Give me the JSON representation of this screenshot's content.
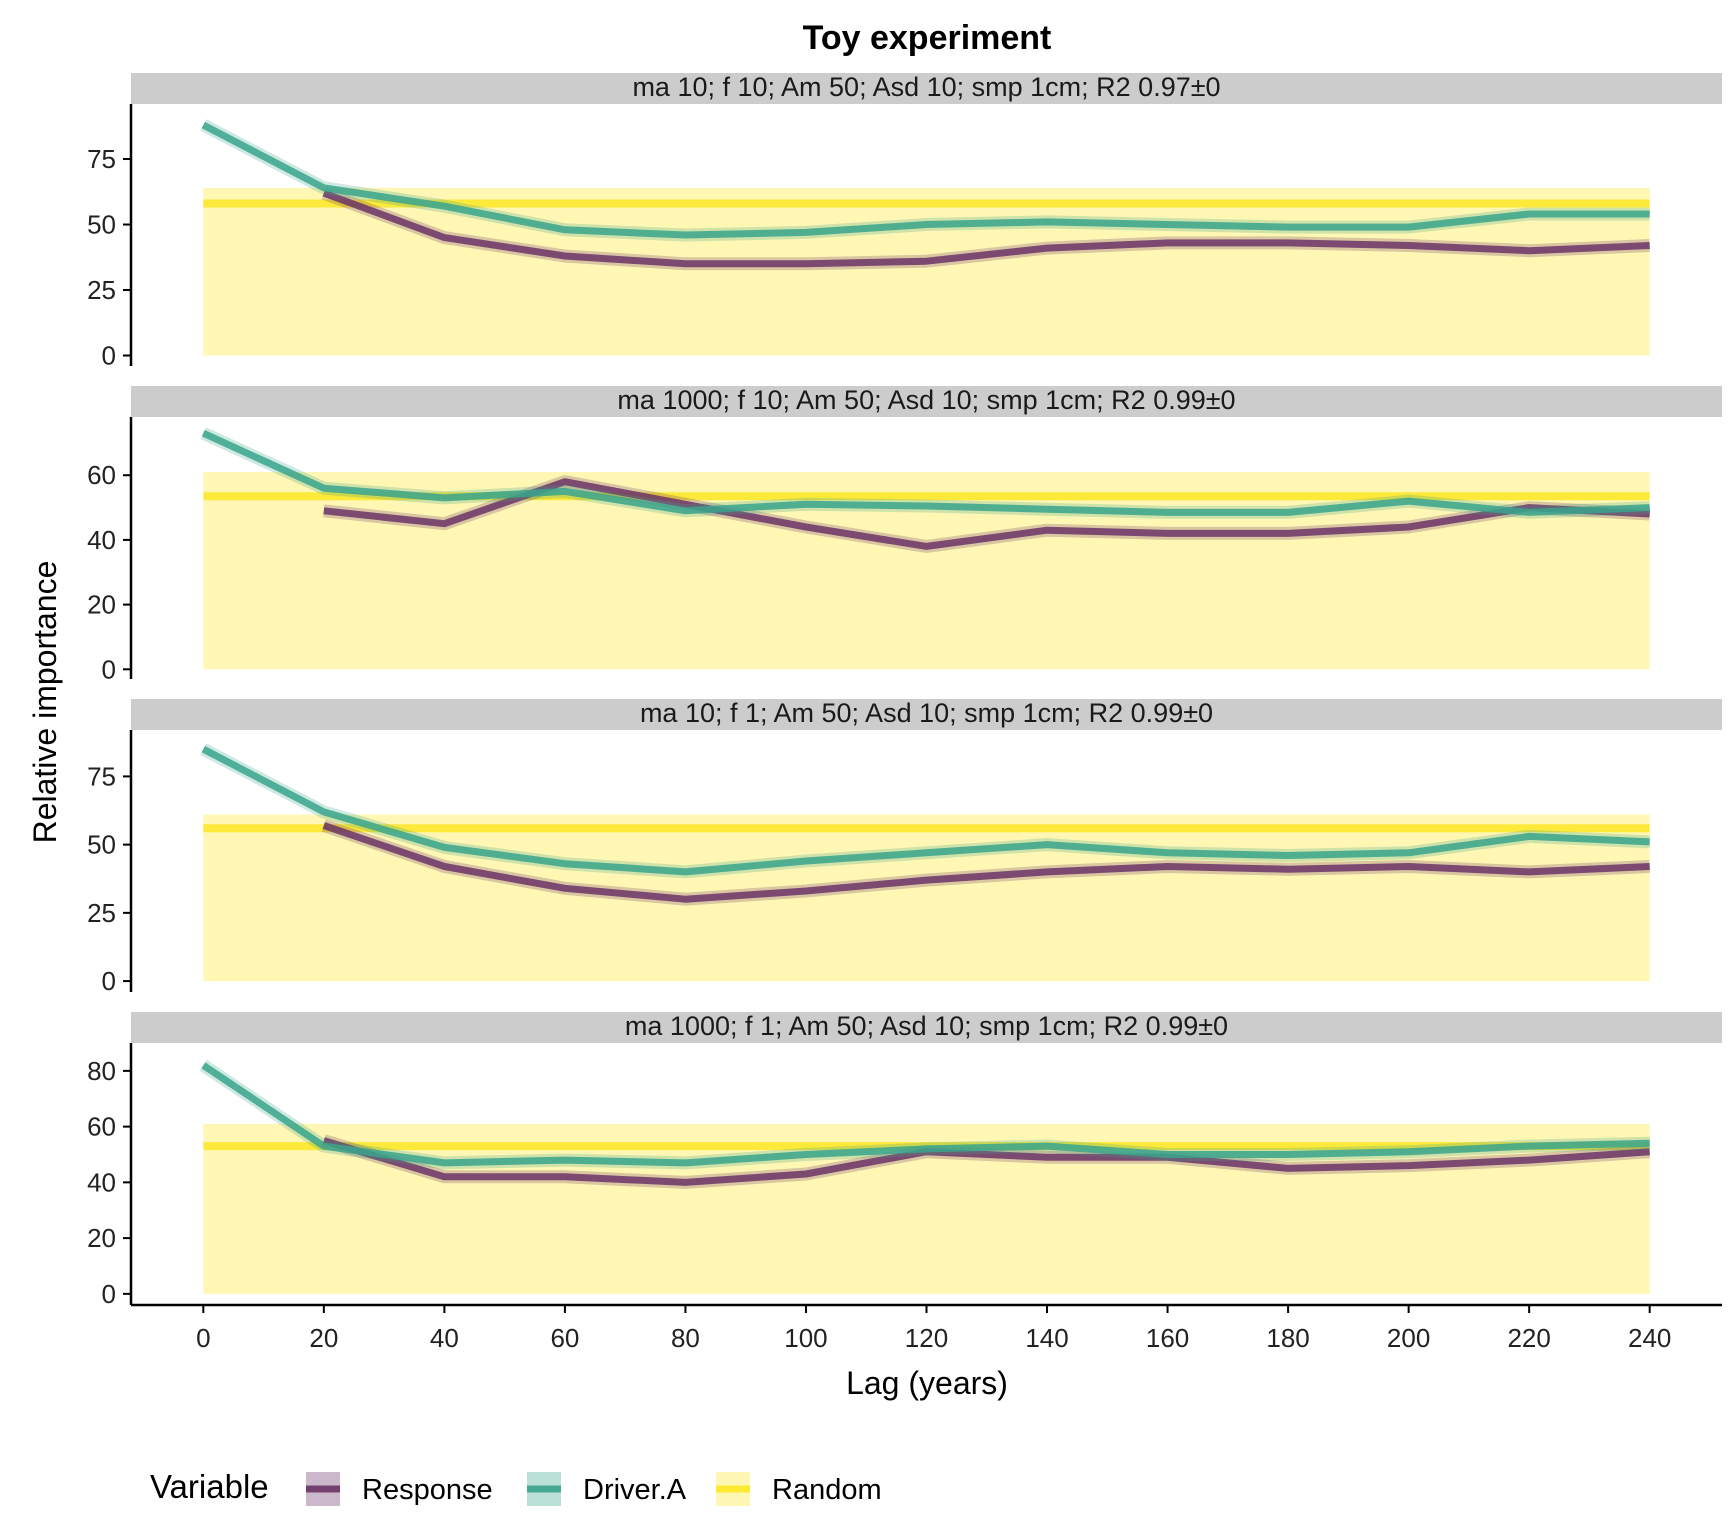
{
  "chart_data": {
    "type": "line",
    "title": "Toy experiment",
    "xlabel": "Lag (years)",
    "ylabel": "Relative importance",
    "x": [
      0,
      20,
      40,
      60,
      80,
      100,
      120,
      140,
      160,
      180,
      200,
      220,
      240
    ],
    "xlim": [
      -12,
      252
    ],
    "grid": false,
    "legend": {
      "title": "Variable",
      "position": "bottom-left",
      "entries": [
        "Response",
        "Driver.A",
        "Random"
      ]
    },
    "colors": {
      "Response": "#6b3467",
      "Driver.A": "#3aa58c",
      "Random": "#fde725",
      "random_band": "#fff7b3",
      "strip": "#cccccc"
    },
    "panels": [
      {
        "strip": "ma 10; f 10; Am 50; Asd 10; smp 1cm; R2 0.97±0",
        "ylim": [
          -4,
          96
        ],
        "yticks": [
          0,
          25,
          50,
          75
        ],
        "random": {
          "median": 58,
          "lower": 0,
          "upper": 64
        },
        "series": [
          {
            "name": "Response",
            "values": [
              null,
              62,
              45,
              38,
              35,
              35,
              36,
              41,
              43,
              43,
              42,
              40,
              42
            ]
          },
          {
            "name": "Driver.A",
            "values": [
              88,
              64,
              57,
              48,
              46,
              47,
              50,
              51,
              50,
              49,
              49,
              54,
              54
            ]
          }
        ]
      },
      {
        "strip": "ma 1000; f 10; Am 50; Asd 10; smp 1cm; R2 0.99±0",
        "ylim": [
          -3,
          78
        ],
        "yticks": [
          0,
          20,
          40,
          60
        ],
        "random": {
          "median": 53.5,
          "lower": 0,
          "upper": 61
        },
        "series": [
          {
            "name": "Response",
            "values": [
              null,
              49,
              45,
              58,
              51,
              44,
              38,
              43,
              42,
              42,
              44,
              50,
              48
            ]
          },
          {
            "name": "Driver.A",
            "values": [
              73,
              56,
              53,
              55,
              49,
              51,
              50.5,
              49.5,
              48.5,
              48.5,
              52,
              48.5,
              50
            ]
          }
        ]
      },
      {
        "strip": "ma 10; f 1; Am 50; Asd 10; smp 1cm; R2 0.99±0",
        "ylim": [
          -4,
          92
        ],
        "yticks": [
          0,
          25,
          50,
          75
        ],
        "random": {
          "median": 56,
          "lower": 0,
          "upper": 61
        },
        "series": [
          {
            "name": "Response",
            "values": [
              null,
              57,
              42,
              34,
              30,
              33,
              37,
              40,
              42,
              41,
              42,
              40,
              42
            ]
          },
          {
            "name": "Driver.A",
            "values": [
              85,
              62,
              49,
              43,
              40,
              44,
              47,
              50,
              47,
              46,
              47,
              53,
              51
            ]
          }
        ]
      },
      {
        "strip": "ma 1000; f 1; Am 50; Asd 10; smp 1cm; R2 0.99±0",
        "ylim": [
          -4,
          90
        ],
        "yticks": [
          0,
          20,
          40,
          60,
          80
        ],
        "random": {
          "median": 53,
          "lower": 0,
          "upper": 61
        },
        "series": [
          {
            "name": "Response",
            "values": [
              null,
              55,
              42,
              42,
              40,
              43,
              51,
              49,
              49,
              45,
              46,
              48,
              51
            ]
          },
          {
            "name": "Driver.A",
            "values": [
              82,
              53,
              47,
              48,
              47,
              50,
              52,
              53,
              50,
              50,
              51,
              53,
              54
            ]
          }
        ]
      }
    ]
  }
}
